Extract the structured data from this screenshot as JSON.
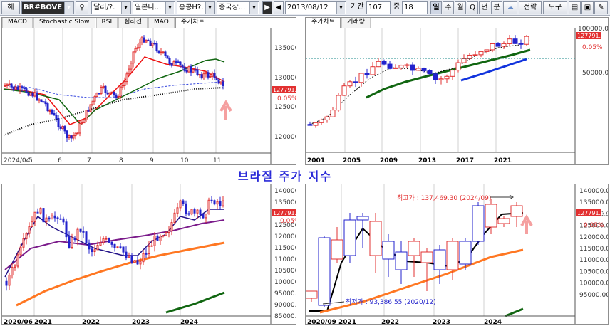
{
  "toolbar": {
    "mode": "해",
    "ticker": "BR#BOVE",
    "currency": "달러/?.",
    "market1": "일본니...",
    "market2": "홍콩H?.",
    "market3": "중국상...",
    "date": "2013/08/12",
    "period_label": "기간",
    "period_value": "107",
    "mid_label": "중",
    "mid_value": "18",
    "intervals": [
      "일",
      "주",
      "월",
      "Q",
      "년",
      "분"
    ],
    "strategy": "전략",
    "tools": "도구",
    "icons": [
      "search-icon",
      "play-icon",
      "prev-icon",
      "cloud-icon",
      "folder-icon",
      "save-icon",
      "wrench-icon"
    ]
  },
  "title": "브라질 주가 지수",
  "panel_daily": {
    "tabs": [
      "MACD",
      "Stochastic Slow",
      "RSI",
      "심리선",
      "MAO",
      "주가차트"
    ],
    "active_tab": 5,
    "price_label": "127791.60",
    "change_label": "0.05%",
    "y_ticks": [
      "135000.00",
      "130000.00",
      "125000.00",
      "120000.00"
    ],
    "x_ticks": [
      "2024/04",
      "5",
      "6",
      "7",
      "8",
      "9",
      "10",
      "11"
    ]
  },
  "panel_yearly": {
    "tabs": [
      "주가차트",
      "거래량"
    ],
    "active_tab": 0,
    "price_label": "127791.60",
    "change_label": "0.05%",
    "y_ticks": [
      "100000.00",
      "50000.00"
    ],
    "x_ticks": [
      "2001",
      "2005",
      "2009",
      "2013",
      "2017",
      "2021"
    ]
  },
  "panel_weekly": {
    "price_label": "127791.60",
    "change_label": "0.05%",
    "y_ticks": [
      "140000.00",
      "135000.00",
      "130000.00",
      "125000.00",
      "120000.00",
      "115000.00",
      "110000.00",
      "105000.00",
      "100000.00",
      "95000.00",
      "90000.00",
      "85000.00"
    ],
    "x_ticks": [
      "2020/06",
      "2021",
      "2022",
      "2023",
      "2024"
    ]
  },
  "panel_quarterly": {
    "price_label": "127791.60",
    "change_label": "0.05%",
    "high_label": "최고가 : 137,469.30 (2024/09)",
    "low_label": "최저가 : 93,386.55 (2020/12)",
    "y_ticks": [
      "140000.00",
      "135000.00",
      "130000.00",
      "125000.00",
      "120000.00",
      "115000.00",
      "110000.00",
      "105000.00",
      "100000.00",
      "95000.00"
    ],
    "x_ticks": [
      "2020/09",
      "2021",
      "2022",
      "2023",
      "2024"
    ]
  },
  "colors": {
    "up": "#e23030",
    "down": "#2222cc",
    "ma_red": "#ee1111",
    "ma_green": "#116611",
    "ma_orange": "#ff7722",
    "ma_purple": "#7a1a8a",
    "ma_blue": "#1133dd"
  }
}
